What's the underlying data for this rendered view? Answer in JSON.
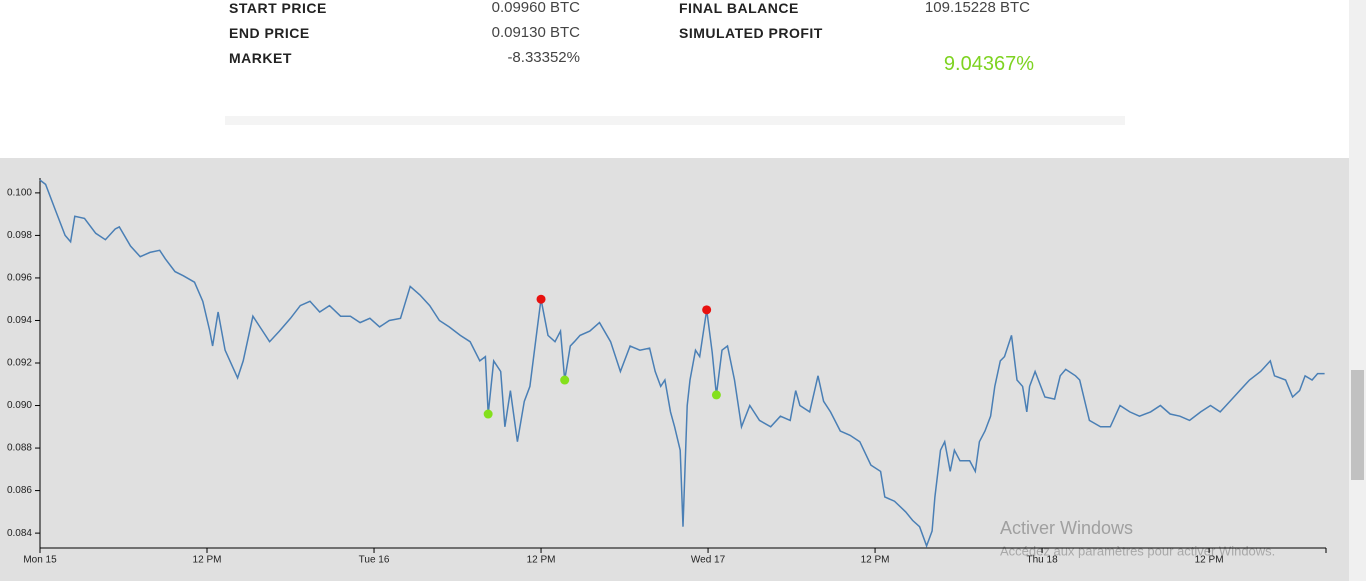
{
  "stats": {
    "left": [
      {
        "label": "START PRICE",
        "value": "0.09960 BTC"
      },
      {
        "label": "END PRICE",
        "value": "0.09130 BTC"
      },
      {
        "label": "MARKET",
        "value": "-8.33352%"
      }
    ],
    "right": [
      {
        "label": "FINAL BALANCE",
        "value": "109.15228 BTC"
      },
      {
        "label": "SIMULATED PROFIT",
        "value": "9.04367%"
      }
    ]
  },
  "watermark": {
    "title": "Activer Windows",
    "subtitle": "Accédez aux paramètres pour activer Windows."
  },
  "chart_data": {
    "type": "line",
    "x": [
      0,
      0.4,
      1.1,
      1.8,
      2.2,
      2.5,
      3.2,
      4.0,
      4.7,
      5.4,
      5.7,
      6.5,
      7.2,
      7.9,
      8.6,
      9.0,
      9.7,
      10.3,
      11.1,
      11.7,
      12.2,
      12.4,
      12.8,
      13.3,
      14.2,
      14.6,
      15.3,
      16.0,
      16.5,
      17.2,
      18.0,
      18.7,
      19.4,
      20.1,
      20.8,
      21.6,
      22.3,
      23.0,
      23.7,
      24.4,
      25.1,
      25.9,
      26.6,
      27.3,
      28.0,
      28.7,
      29.4,
      30.2,
      30.9,
      31.6,
      32.0,
      32.2,
      32.6,
      33.1,
      33.4,
      33.8,
      34.3,
      34.8,
      35.2,
      35.7,
      36.0,
      36.5,
      37.0,
      37.4,
      37.7,
      38.1,
      38.4,
      38.8,
      39.5,
      40.2,
      41.0,
      41.7,
      42.4,
      43.1,
      43.8,
      44.2,
      44.6,
      44.9,
      45.3,
      45.6,
      46.0,
      46.2,
      46.5,
      46.7,
      47.1,
      47.4,
      47.9,
      48.3,
      48.6,
      49.0,
      49.4,
      49.9,
      50.4,
      51.0,
      51.7,
      52.5,
      53.2,
      53.9,
      54.3,
      54.6,
      55.3,
      55.9,
      56.3,
      56.8,
      57.5,
      58.2,
      58.9,
      59.7,
      60.4,
      60.7,
      61.4,
      62.2,
      62.7,
      63.2,
      63.7,
      64.1,
      64.3,
      64.7,
      65.0,
      65.4,
      65.7,
      66.1,
      66.8,
      67.2,
      67.5,
      67.9,
      68.3,
      68.6,
      69.0,
      69.3,
      69.8,
      70.2,
      70.6,
      70.9,
      71.1,
      71.5,
      72.2,
      72.9,
      73.3,
      73.7,
      74.4,
      74.7,
      75.4,
      76.2,
      76.9,
      77.6,
      78.3,
      79.0,
      79.8,
      80.5,
      81.2,
      81.9,
      82.6,
      83.4,
      84.1,
      84.8,
      85.5,
      86.2,
      86.9,
      87.7,
      88.4,
      88.7,
      89.5,
      90.0,
      90.5,
      90.9,
      91.4,
      91.8,
      92.3
    ],
    "series": [
      {
        "color": "#4a7fb5",
        "values": [
          0.1006,
          0.1004,
          0.0992,
          0.098,
          0.0977,
          0.0989,
          0.0988,
          0.0981,
          0.0978,
          0.0983,
          0.0984,
          0.0975,
          0.097,
          0.0972,
          0.0973,
          0.0969,
          0.0963,
          0.0961,
          0.0958,
          0.0949,
          0.0935,
          0.0928,
          0.0944,
          0.0926,
          0.0913,
          0.0921,
          0.0942,
          0.0935,
          0.093,
          0.0935,
          0.0941,
          0.0947,
          0.0949,
          0.0944,
          0.0947,
          0.0942,
          0.0942,
          0.0939,
          0.0941,
          0.0937,
          0.094,
          0.0941,
          0.0956,
          0.0952,
          0.0947,
          0.094,
          0.0937,
          0.0933,
          0.093,
          0.0921,
          0.0923,
          0.0896,
          0.0921,
          0.0916,
          0.089,
          0.0907,
          0.0883,
          0.0902,
          0.0909,
          0.0935,
          0.095,
          0.0933,
          0.093,
          0.0935,
          0.0912,
          0.0928,
          0.093,
          0.0933,
          0.0935,
          0.0939,
          0.093,
          0.0916,
          0.0928,
          0.0926,
          0.0927,
          0.0916,
          0.0909,
          0.0912,
          0.0897,
          0.089,
          0.0879,
          0.0843,
          0.09,
          0.0912,
          0.0926,
          0.0923,
          0.0945,
          0.0925,
          0.0905,
          0.0926,
          0.0928,
          0.0912,
          0.089,
          0.09,
          0.0893,
          0.089,
          0.0895,
          0.0893,
          0.0907,
          0.09,
          0.0897,
          0.0914,
          0.0902,
          0.0897,
          0.0888,
          0.0886,
          0.0883,
          0.0872,
          0.0869,
          0.0857,
          0.0855,
          0.085,
          0.0846,
          0.0843,
          0.0834,
          0.0841,
          0.0857,
          0.0879,
          0.0883,
          0.0869,
          0.0879,
          0.0874,
          0.0874,
          0.0869,
          0.0883,
          0.0888,
          0.0895,
          0.0909,
          0.0921,
          0.0923,
          0.0933,
          0.0912,
          0.0909,
          0.0897,
          0.0909,
          0.0916,
          0.0904,
          0.0903,
          0.0914,
          0.0917,
          0.0914,
          0.0912,
          0.0893,
          0.089,
          0.089,
          0.09,
          0.0897,
          0.0895,
          0.0897,
          0.09,
          0.0896,
          0.0895,
          0.0893,
          0.0897,
          0.09,
          0.0897,
          0.0902,
          0.0907,
          0.0912,
          0.0916,
          0.0921,
          0.0914,
          0.0912,
          0.0904,
          0.0907,
          0.0914,
          0.0912,
          0.0915,
          0.0915
        ]
      }
    ],
    "markers": [
      {
        "color": "#e8110f",
        "x": [
          36.0,
          47.9
        ],
        "values": [
          0.095,
          0.0945
        ]
      },
      {
        "color": "#84e01c",
        "x": [
          32.2,
          37.7,
          48.6
        ],
        "values": [
          0.0896,
          0.0912,
          0.0905
        ]
      }
    ],
    "xlim": [
      0,
      92.4
    ],
    "xticks": [
      {
        "value": 0,
        "label": "Mon 15"
      },
      {
        "value": 12,
        "label": "12 PM"
      },
      {
        "value": 24,
        "label": "Tue 16"
      },
      {
        "value": 36,
        "label": "12 PM"
      },
      {
        "value": 48,
        "label": "Wed 17"
      },
      {
        "value": 60,
        "label": "12 PM"
      },
      {
        "value": 72,
        "label": "Thu 18"
      },
      {
        "value": 84,
        "label": "12 PM"
      }
    ],
    "ylim": [
      0.0833,
      0.1007
    ],
    "yticks": [
      0.084,
      0.086,
      0.088,
      {
        "value": 0.09,
        "label": "0.090"
      },
      0.092,
      0.094,
      0.096,
      0.098,
      {
        "value": 0.1,
        "label": "0.100"
      }
    ]
  }
}
